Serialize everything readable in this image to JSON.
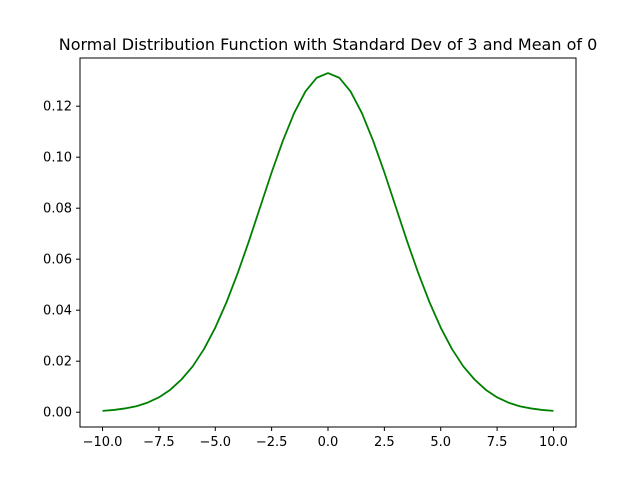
{
  "chart_data": {
    "type": "line",
    "title": "Normal Distribution Function with Standard Dev of 3 and Mean of 0",
    "xlabel": "",
    "ylabel": "",
    "xlim": [
      -11.0,
      11.0
    ],
    "ylim": [
      -0.0058,
      0.1389
    ],
    "grid": false,
    "legend": "none",
    "x_ticks": [
      -10.0,
      -7.5,
      -5.0,
      -2.5,
      0.0,
      2.5,
      5.0,
      7.5,
      10.0
    ],
    "x_tick_labels": [
      "−10.0",
      "−7.5",
      "−5.0",
      "−2.5",
      "0.0",
      "2.5",
      "5.0",
      "7.5",
      "10.0"
    ],
    "y_ticks": [
      0.0,
      0.02,
      0.04,
      0.06,
      0.08,
      0.1,
      0.12
    ],
    "y_tick_labels": [
      "0.00",
      "0.02",
      "0.04",
      "0.06",
      "0.08",
      "0.10",
      "0.12"
    ],
    "series": [
      {
        "color": "#008000",
        "x": [
          -10.0,
          -9.5,
          -9.0,
          -8.5,
          -8.0,
          -7.5,
          -7.0,
          -6.5,
          -6.0,
          -5.5,
          -5.0,
          -4.5,
          -4.0,
          -3.5,
          -3.0,
          -2.5,
          -2.0,
          -1.5,
          -1.0,
          -0.5,
          0.0,
          0.5,
          1.0,
          1.5,
          2.0,
          2.5,
          3.0,
          3.5,
          4.0,
          4.5,
          5.0,
          5.5,
          6.0,
          6.5,
          7.0,
          7.5,
          8.0,
          8.5,
          9.0,
          9.5,
          10.0
        ],
        "y": [
          0.00051,
          0.00089,
          0.00148,
          0.00235,
          0.00377,
          0.00584,
          0.00878,
          0.01282,
          0.018,
          0.02476,
          0.03315,
          0.04317,
          0.05467,
          0.06726,
          0.08066,
          0.09405,
          0.10648,
          0.11735,
          0.12579,
          0.13116,
          0.13298,
          0.13116,
          0.12579,
          0.11735,
          0.10648,
          0.09405,
          0.08066,
          0.06726,
          0.05467,
          0.04317,
          0.03315,
          0.02476,
          0.018,
          0.01282,
          0.00878,
          0.00584,
          0.00377,
          0.00235,
          0.00148,
          0.00089,
          0.00051
        ]
      }
    ]
  }
}
